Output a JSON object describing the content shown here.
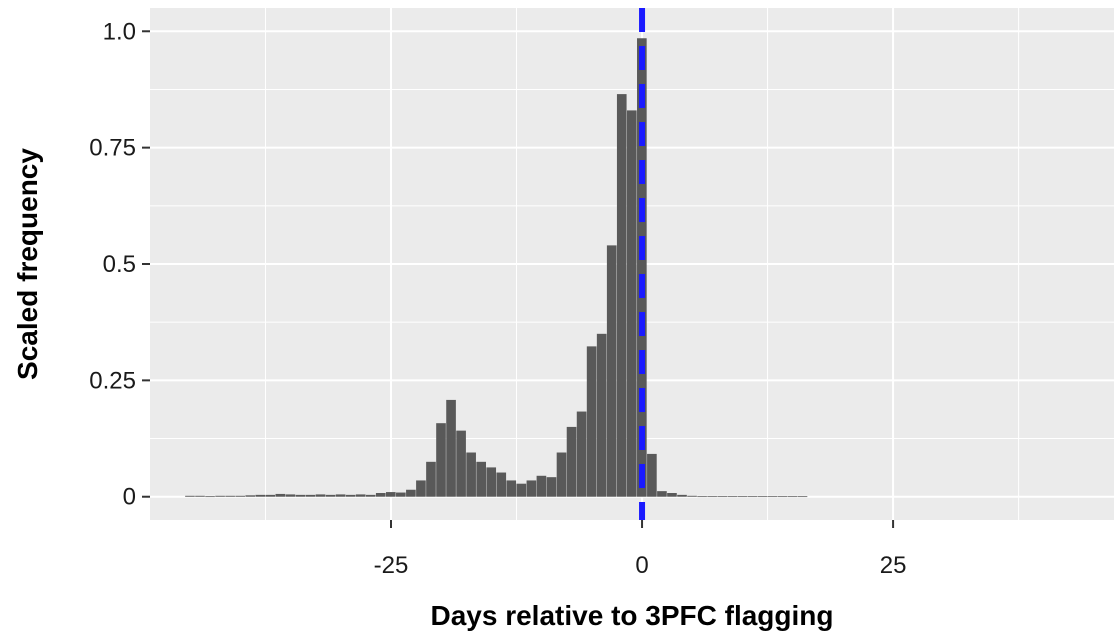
{
  "chart_data": {
    "type": "bar",
    "title": "",
    "xlabel": "Days relative to 3PFC flagging",
    "ylabel": "Scaled frequency",
    "xlim": [
      -49,
      47
    ],
    "ylim": [
      -0.05,
      1.05
    ],
    "x_ticks": [
      {
        "value": -25,
        "label": "-25"
      },
      {
        "value": 0,
        "label": "0"
      },
      {
        "value": 25,
        "label": "25"
      }
    ],
    "y_ticks": [
      {
        "value": 0,
        "label": "0"
      },
      {
        "value": 0.25,
        "label": "0.25"
      },
      {
        "value": 0.5,
        "label": "0.5"
      },
      {
        "value": 0.75,
        "label": "0.75"
      },
      {
        "value": 1.0,
        "label": "1.0"
      }
    ],
    "grid": true,
    "bin_width": 1,
    "bins": [
      {
        "x": -45,
        "y": 0.002
      },
      {
        "x": -44,
        "y": 0.002
      },
      {
        "x": -43,
        "y": 0.001
      },
      {
        "x": -42,
        "y": 0.002
      },
      {
        "x": -41,
        "y": 0.002
      },
      {
        "x": -40,
        "y": 0.002
      },
      {
        "x": -39,
        "y": 0.003
      },
      {
        "x": -38,
        "y": 0.004
      },
      {
        "x": -37,
        "y": 0.004
      },
      {
        "x": -36,
        "y": 0.006
      },
      {
        "x": -35,
        "y": 0.005
      },
      {
        "x": -34,
        "y": 0.004
      },
      {
        "x": -33,
        "y": 0.004
      },
      {
        "x": -32,
        "y": 0.005
      },
      {
        "x": -31,
        "y": 0.004
      },
      {
        "x": -30,
        "y": 0.005
      },
      {
        "x": -29,
        "y": 0.004
      },
      {
        "x": -28,
        "y": 0.005
      },
      {
        "x": -27,
        "y": 0.004
      },
      {
        "x": -26,
        "y": 0.008
      },
      {
        "x": -25,
        "y": 0.01
      },
      {
        "x": -24,
        "y": 0.009
      },
      {
        "x": -23,
        "y": 0.015
      },
      {
        "x": -22,
        "y": 0.035
      },
      {
        "x": -21,
        "y": 0.075
      },
      {
        "x": -20,
        "y": 0.158
      },
      {
        "x": -19,
        "y": 0.208
      },
      {
        "x": -18,
        "y": 0.142
      },
      {
        "x": -17,
        "y": 0.095
      },
      {
        "x": -16,
        "y": 0.075
      },
      {
        "x": -15,
        "y": 0.063
      },
      {
        "x": -14,
        "y": 0.052
      },
      {
        "x": -13,
        "y": 0.035
      },
      {
        "x": -12,
        "y": 0.028
      },
      {
        "x": -11,
        "y": 0.035
      },
      {
        "x": -10,
        "y": 0.045
      },
      {
        "x": -9,
        "y": 0.042
      },
      {
        "x": -8,
        "y": 0.095
      },
      {
        "x": -7,
        "y": 0.15
      },
      {
        "x": -6,
        "y": 0.183
      },
      {
        "x": -5,
        "y": 0.323
      },
      {
        "x": -4,
        "y": 0.35
      },
      {
        "x": -3,
        "y": 0.54
      },
      {
        "x": -2,
        "y": 0.865
      },
      {
        "x": -1,
        "y": 0.83
      },
      {
        "x": 0,
        "y": 0.985
      },
      {
        "x": 1,
        "y": 0.092
      },
      {
        "x": 2,
        "y": 0.012
      },
      {
        "x": 3,
        "y": 0.008
      },
      {
        "x": 4,
        "y": 0.004
      },
      {
        "x": 5,
        "y": 0.002
      },
      {
        "x": 6,
        "y": 0.001
      },
      {
        "x": 7,
        "y": 0.001
      },
      {
        "x": 8,
        "y": 0.001
      },
      {
        "x": 9,
        "y": 0.001
      },
      {
        "x": 10,
        "y": 0.001
      },
      {
        "x": 11,
        "y": 0.001
      },
      {
        "x": 12,
        "y": 0.001
      },
      {
        "x": 13,
        "y": 0.001
      },
      {
        "x": 14,
        "y": 0.001
      },
      {
        "x": 15,
        "y": 0.001
      },
      {
        "x": 16,
        "y": 0.001
      }
    ],
    "bar_color": "#595959",
    "reference_line": {
      "x": 0,
      "color": "#1a1aff",
      "style": "dashed"
    },
    "panel_color": "#ebebeb",
    "grid_color": "#ffffff"
  }
}
